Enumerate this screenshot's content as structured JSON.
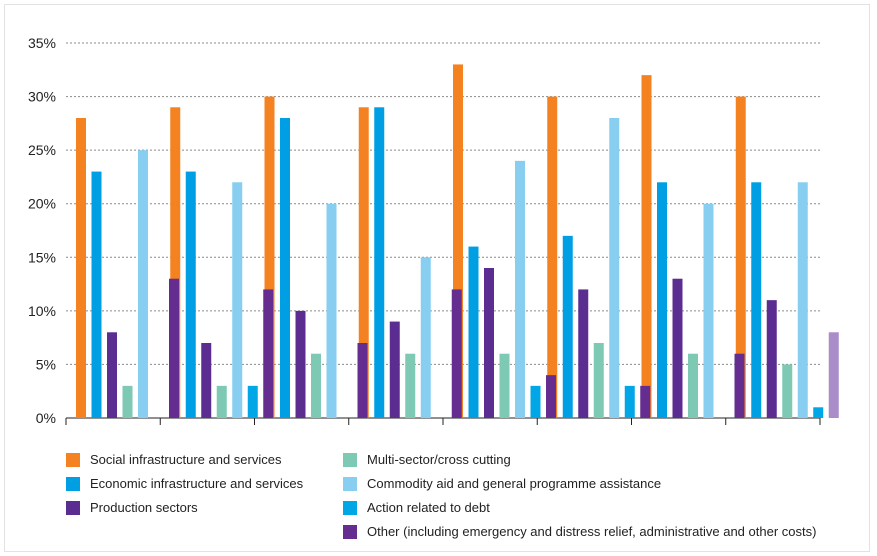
{
  "chart_data": {
    "type": "bar",
    "title": "",
    "xlabel": "",
    "ylabel": "",
    "ylim": [
      0,
      35
    ],
    "yticks": [
      "0%",
      "5%",
      "10%",
      "15%",
      "20%",
      "25%",
      "30%",
      "35%"
    ],
    "grid": true,
    "legend_position": "bottom",
    "groups": 8,
    "series": [
      {
        "name": "Social infrastructure and services",
        "color": "#F58220",
        "values": [
          28,
          29,
          30,
          29,
          33,
          30,
          32,
          30
        ]
      },
      {
        "name": "Economic infrastructure and services",
        "color": "#009FE3",
        "values": [
          23,
          23,
          28,
          29,
          16,
          17,
          22,
          22
        ]
      },
      {
        "name": "Production sectors",
        "color": "#5C2D91",
        "values": [
          8,
          7,
          10,
          9,
          14,
          12,
          13,
          11
        ]
      },
      {
        "name": "Multi-sector/cross cutting",
        "color": "#7DC9B4",
        "values": [
          3,
          3,
          6,
          6,
          6,
          7,
          6,
          5
        ]
      },
      {
        "name": "Commodity aid and general programme assistance",
        "color": "#87CEF0",
        "values": [
          25,
          22,
          20,
          15,
          24,
          28,
          20,
          22
        ]
      },
      {
        "name": "Action related to debt",
        "color": "#00A6E6",
        "values": [
          0,
          3,
          0,
          0,
          3,
          3,
          0,
          1
        ]
      },
      {
        "name": "Other (including emergency and distress relief, administrative and other costs)",
        "color": "#662D91",
        "values": [
          13,
          12,
          7,
          12,
          4,
          3,
          6,
          8
        ],
        "last_color": "#A98CC8"
      }
    ]
  },
  "legend": {
    "col1": [
      {
        "label": "Social infrastructure and services",
        "color": "#F58220"
      },
      {
        "label": "Economic infrastructure and services",
        "color": "#009FE3"
      },
      {
        "label": "Production sectors",
        "color": "#5C2D91"
      }
    ],
    "col2": [
      {
        "label": "Multi-sector/cross cutting",
        "color": "#7DC9B4"
      },
      {
        "label": "Commodity aid and general programme assistance",
        "color": "#87CEF0"
      },
      {
        "label": "Action related to debt",
        "color": "#00A6E6"
      },
      {
        "label": "Other (including emergency and distress relief, administrative and other costs)",
        "color": "#662D91"
      }
    ]
  }
}
